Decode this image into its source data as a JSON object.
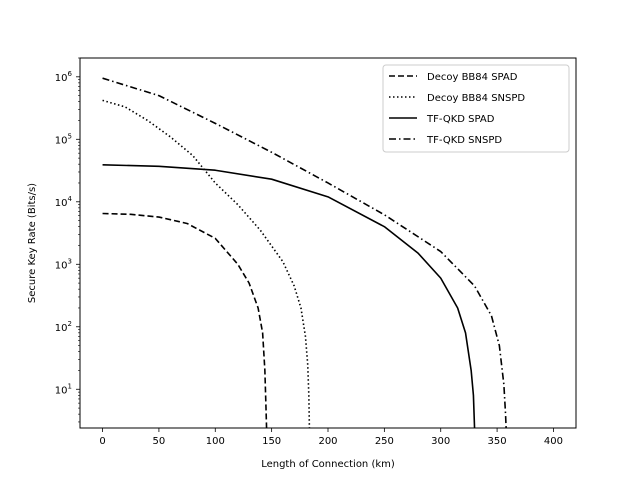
{
  "chart_data": {
    "type": "line",
    "xlabel": "Length of Connection (km)",
    "ylabel": "Secure Key Rate (Bits/s)",
    "xlim": [
      -20,
      420
    ],
    "ylim": [
      2.4,
      2000000
    ],
    "yscale": "log",
    "xticks": [
      0,
      50,
      100,
      150,
      200,
      250,
      300,
      350,
      400
    ],
    "xtick_labels": [
      "0",
      "50",
      "100",
      "150",
      "200",
      "250",
      "300",
      "350",
      "400"
    ],
    "yticks": [
      10,
      100,
      1000,
      10000,
      100000,
      1000000
    ],
    "ytick_labels": [
      {
        "base": "10",
        "exp": "1"
      },
      {
        "base": "10",
        "exp": "2"
      },
      {
        "base": "10",
        "exp": "3"
      },
      {
        "base": "10",
        "exp": "4"
      },
      {
        "base": "10",
        "exp": "5"
      },
      {
        "base": "10",
        "exp": "6"
      }
    ],
    "grid": false,
    "legend_position": "top-right",
    "series": [
      {
        "name": "Decoy BB84 SPAD",
        "style": "dashed",
        "color": "#000000",
        "points": [
          [
            0,
            6500
          ],
          [
            25,
            6300
          ],
          [
            50,
            5700
          ],
          [
            75,
            4500
          ],
          [
            100,
            2600
          ],
          [
            120,
            1000
          ],
          [
            130,
            500
          ],
          [
            138,
            200
          ],
          [
            142,
            80
          ],
          [
            144,
            20
          ],
          [
            145,
            5
          ],
          [
            145.5,
            2.4
          ]
        ]
      },
      {
        "name": "Decoy BB84 SNSPD",
        "style": "dotted",
        "color": "#000000",
        "points": [
          [
            0,
            420000
          ],
          [
            20,
            330000
          ],
          [
            40,
            200000
          ],
          [
            60,
            110000
          ],
          [
            80,
            55000
          ],
          [
            100,
            20000
          ],
          [
            120,
            9000
          ],
          [
            140,
            3500
          ],
          [
            160,
            1100
          ],
          [
            170,
            450
          ],
          [
            176,
            200
          ],
          [
            180,
            70
          ],
          [
            182,
            25
          ],
          [
            183,
            8
          ],
          [
            183.5,
            2.4
          ]
        ]
      },
      {
        "name": "TF-QKD SPAD",
        "style": "solid",
        "color": "#000000",
        "points": [
          [
            0,
            39000
          ],
          [
            50,
            37000
          ],
          [
            100,
            32000
          ],
          [
            150,
            23000
          ],
          [
            200,
            12000
          ],
          [
            250,
            4000
          ],
          [
            280,
            1500
          ],
          [
            300,
            600
          ],
          [
            315,
            200
          ],
          [
            322,
            80
          ],
          [
            327,
            20
          ],
          [
            329,
            8
          ],
          [
            330,
            2.4
          ]
        ]
      },
      {
        "name": "TF-QKD SNSPD",
        "style": "dashdot",
        "color": "#000000",
        "points": [
          [
            0,
            950000
          ],
          [
            50,
            500000
          ],
          [
            100,
            180000
          ],
          [
            150,
            62000
          ],
          [
            200,
            20000
          ],
          [
            250,
            6200
          ],
          [
            300,
            1600
          ],
          [
            330,
            450
          ],
          [
            345,
            150
          ],
          [
            352,
            50
          ],
          [
            356,
            12
          ],
          [
            357.5,
            4
          ],
          [
            358,
            2.4
          ]
        ]
      }
    ]
  }
}
